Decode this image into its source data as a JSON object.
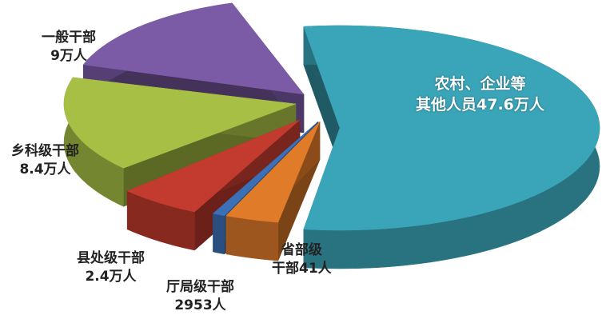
{
  "chart_data": {
    "type": "pie",
    "style": "3d-exploded",
    "unit_note": "",
    "slices": [
      {
        "name": "农村、企业等其他人员",
        "label_line1": "农村、企业等",
        "label_line2": "其他人员47.6万人",
        "value": 476000,
        "color": "#3aa5b8"
      },
      {
        "name": "省部级干部",
        "label_line1": "省部级",
        "label_line2": "干部41人",
        "value": 41,
        "color": "#e07b2a"
      },
      {
        "name": "厅局级干部",
        "label_line1": "厅局级干部",
        "label_line2": "2953人",
        "value": 2953,
        "color": "#3b6fb6"
      },
      {
        "name": "县处级干部",
        "label_line1": "县处级干部",
        "label_line2": "2.4万人",
        "value": 24000,
        "color": "#c23b2e"
      },
      {
        "name": "乡科级干部",
        "label_line1": "乡科级干部",
        "label_line2": "8.4万人",
        "value": 84000,
        "color": "#a6bf44"
      },
      {
        "name": "一般干部",
        "label_line1": "一般干部",
        "label_line2": "9万人",
        "value": 90000,
        "color": "#7b5aa6"
      }
    ]
  }
}
